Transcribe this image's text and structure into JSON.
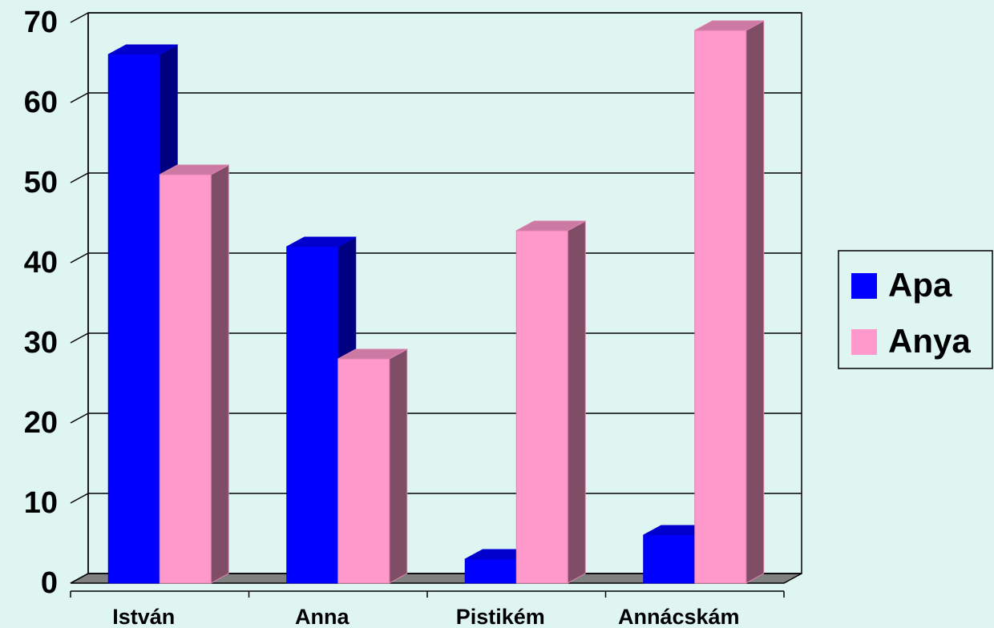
{
  "chart_data": {
    "type": "bar",
    "categories": [
      "István",
      "Anna",
      "Pistikém",
      "Annácskám"
    ],
    "series": [
      {
        "name": "Apa",
        "color": "#0000ff",
        "values": [
          66,
          42,
          3,
          6
        ]
      },
      {
        "name": "Anya",
        "color": "#ff99cc",
        "values": [
          51,
          28,
          44,
          69
        ]
      }
    ],
    "ylim": [
      0,
      70
    ],
    "yticks": [
      0,
      10,
      20,
      30,
      40,
      50,
      60,
      70
    ],
    "grid": true,
    "legend": "right"
  }
}
